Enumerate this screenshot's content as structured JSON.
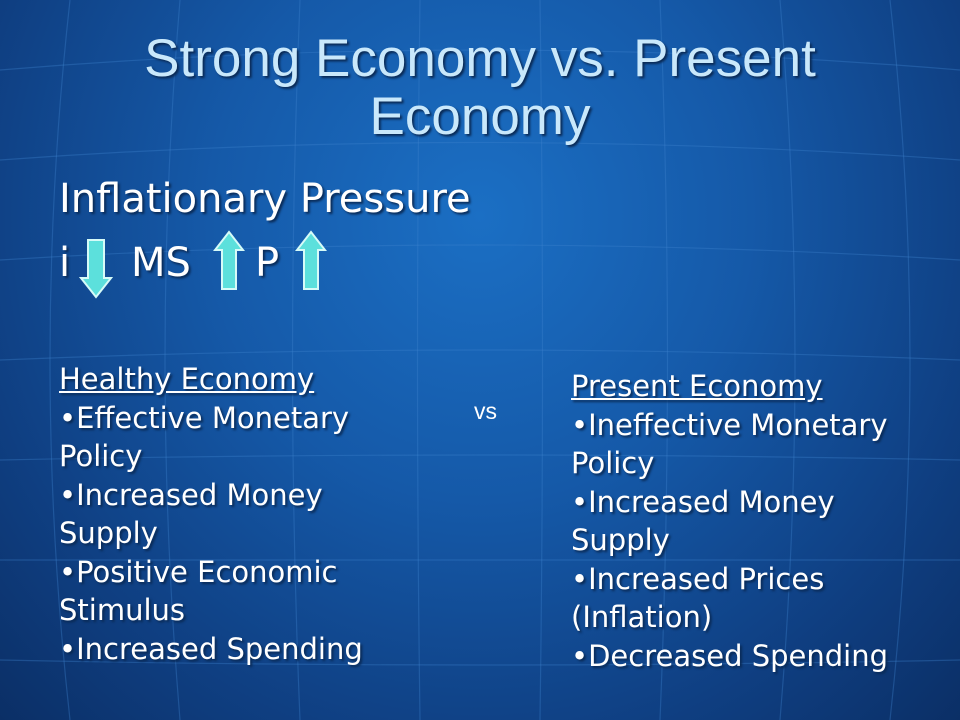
{
  "slide": {
    "title_line1": "Strong Economy vs. Present",
    "title_line2": "Economy",
    "subtitle": "Inflationary Pressure",
    "formula": {
      "i": "i",
      "ms": "MS",
      "p": "P",
      "i_arrow": "down-arrow-icon",
      "ms_arrow": "up-arrow-icon",
      "p_arrow": "up-arrow-icon"
    },
    "vs": "vs"
  },
  "healthy": {
    "heading": "Healthy Economy",
    "items": [
      {
        "line1": "•Effective Monetary",
        "line2": "Policy"
      },
      {
        "line1": "•Increased Money",
        "line2": "Supply"
      },
      {
        "line1": "•Positive Economic",
        "line2": "Stimulus"
      },
      {
        "line1": "•Increased Spending",
        "line2": ""
      }
    ]
  },
  "present": {
    "heading": "Present Economy",
    "items": [
      {
        "line1": "•Ineffective Monetary",
        "line2": "Policy"
      },
      {
        "line1": "•Increased Money",
        "line2": "Supply"
      },
      {
        "line1": "•Increased Prices",
        "line2": "(Inflation)"
      },
      {
        "line1": "•Decreased Spending",
        "line2": ""
      }
    ]
  },
  "colors": {
    "title": "#c9e8fb",
    "text": "#ffffff",
    "arrow_fill": "#5ce0dc",
    "arrow_stroke": "#d6fbf8"
  }
}
